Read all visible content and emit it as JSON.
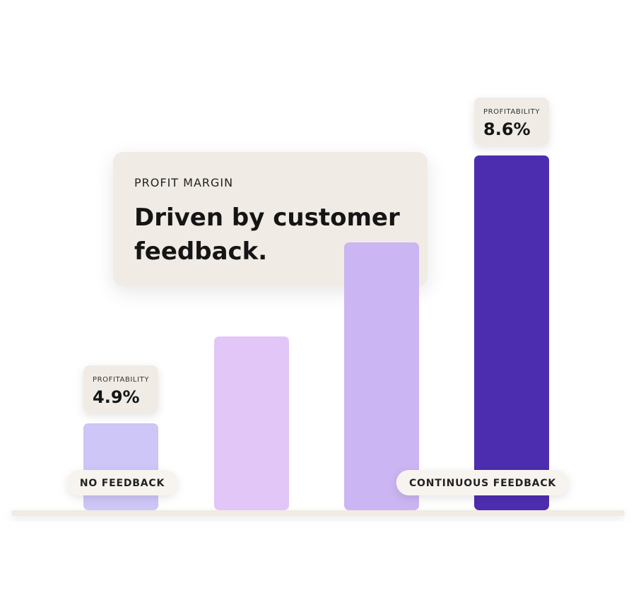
{
  "chart_data": {
    "type": "bar",
    "label": "PROFIT MARGIN",
    "title": "Driven by customer feedback.",
    "categories": [
      "NO FEEDBACK",
      null,
      null,
      "CONTINUOUS FEEDBACK"
    ],
    "values": [
      4.9,
      6.1,
      7.4,
      8.6
    ],
    "value_labels": [
      "4.9%",
      null,
      null,
      "8.6%"
    ],
    "value_label_title": "PROFITABILITY",
    "colors": [
      "#cdc6f7",
      "#e2c6f8",
      "#cbb5f2",
      "#4c2db0"
    ],
    "ylim": [
      3.7,
      8.6
    ]
  }
}
